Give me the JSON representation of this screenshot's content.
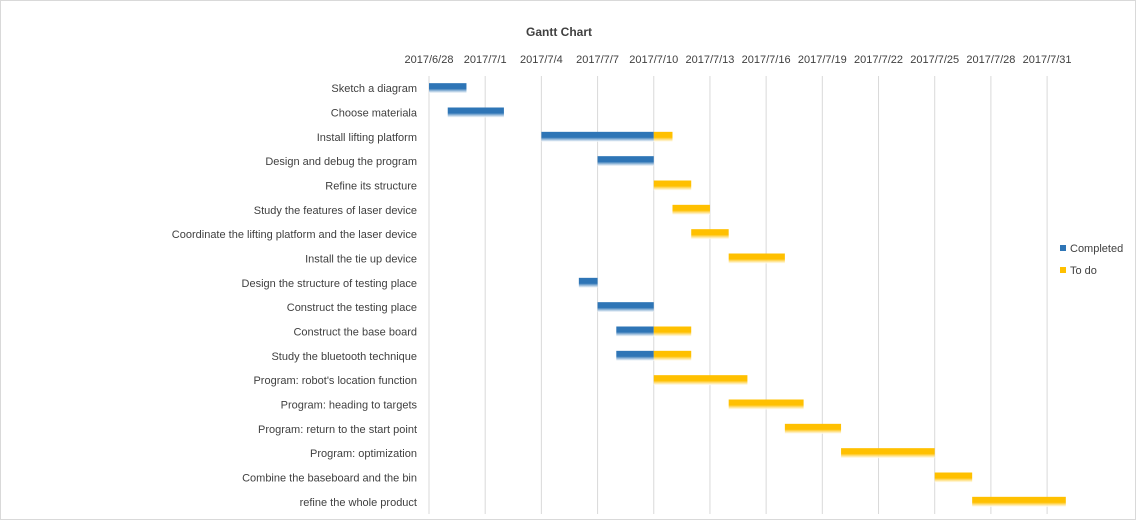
{
  "chart_data": {
    "type": "gantt",
    "title": "Gantt Chart",
    "x_ticks": [
      "2017/6/28",
      "2017/7/1",
      "2017/7/4",
      "2017/7/7",
      "2017/7/10",
      "2017/7/13",
      "2017/7/16",
      "2017/7/19",
      "2017/7/22",
      "2017/7/25",
      "2017/7/28",
      "2017/7/31"
    ],
    "xlim": [
      "2017/6/28",
      "2017/7/31"
    ],
    "grid": "vertical",
    "legend_position": "right",
    "series": [
      {
        "name": "Completed",
        "color": "#2e75b6"
      },
      {
        "name": "To do",
        "color": "#ffc000"
      }
    ],
    "tasks": [
      {
        "name": "Sketch a diagram",
        "start": "2017/6/28",
        "completed_days": 2,
        "todo_days": 0
      },
      {
        "name": "Choose materiala",
        "start": "2017/6/29",
        "completed_days": 3,
        "todo_days": 0
      },
      {
        "name": "Install lifting platform",
        "start": "2017/7/4",
        "completed_days": 6,
        "todo_days": 1
      },
      {
        "name": "Design and debug the program",
        "start": "2017/7/7",
        "completed_days": 3,
        "todo_days": 0
      },
      {
        "name": "Refine its structure",
        "start": "2017/7/10",
        "completed_days": 0,
        "todo_days": 2
      },
      {
        "name": "Study the features of laser device",
        "start": "2017/7/11",
        "completed_days": 0,
        "todo_days": 2
      },
      {
        "name": "Coordinate the lifting platform and the laser device",
        "start": "2017/7/12",
        "completed_days": 0,
        "todo_days": 2
      },
      {
        "name": "Install the tie up device",
        "start": "2017/7/14",
        "completed_days": 0,
        "todo_days": 3
      },
      {
        "name": "Design the structure of testing place",
        "start": "2017/7/6",
        "completed_days": 1,
        "todo_days": 0
      },
      {
        "name": "Construct the testing place",
        "start": "2017/7/7",
        "completed_days": 3,
        "todo_days": 0
      },
      {
        "name": "Construct the base board",
        "start": "2017/7/8",
        "completed_days": 2,
        "todo_days": 2
      },
      {
        "name": "Study the bluetooth technique",
        "start": "2017/7/8",
        "completed_days": 2,
        "todo_days": 2
      },
      {
        "name": "Program: robot's location function",
        "start": "2017/7/10",
        "completed_days": 0,
        "todo_days": 5
      },
      {
        "name": "Program: heading to targets",
        "start": "2017/7/14",
        "completed_days": 0,
        "todo_days": 4
      },
      {
        "name": "Program: return to the start point",
        "start": "2017/7/17",
        "completed_days": 0,
        "todo_days": 3
      },
      {
        "name": "Program: optimization",
        "start": "2017/7/20",
        "completed_days": 0,
        "todo_days": 5
      },
      {
        "name": "Combine the baseboard and the bin",
        "start": "2017/7/25",
        "completed_days": 0,
        "todo_days": 2
      },
      {
        "name": "refine the whole product",
        "start": "2017/7/27",
        "completed_days": 0,
        "todo_days": 5
      }
    ]
  }
}
